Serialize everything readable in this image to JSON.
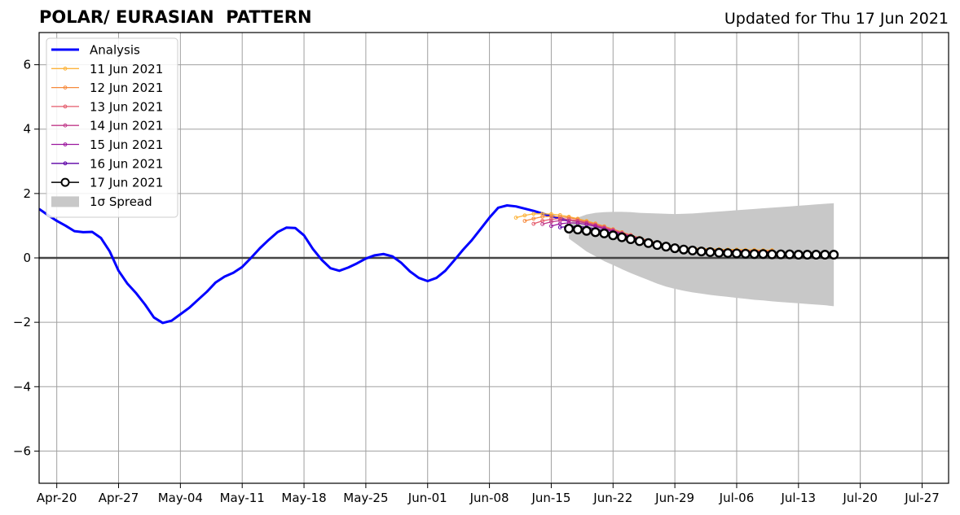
{
  "title_left": "POLAR/ EURASIAN  PATTERN",
  "title_right": "Updated for Thu 17 Jun 2021",
  "chart_data": {
    "type": "line",
    "title": "POLAR/ EURASIAN  PATTERN",
    "subtitle": "Updated for Thu 17 Jun 2021",
    "xlabel": "",
    "ylabel": "",
    "xlim": [
      "2021-04-18",
      "2021-07-30"
    ],
    "ylim": [
      -7,
      7
    ],
    "grid": true,
    "legend_position": "top-left",
    "x_ticks": [
      "Apr-20",
      "Apr-27",
      "May-04",
      "May-11",
      "May-18",
      "May-25",
      "Jun-01",
      "Jun-08",
      "Jun-15",
      "Jun-22",
      "Jun-29",
      "Jul-06",
      "Jul-13",
      "Jul-20",
      "Jul-27"
    ],
    "x_tick_dates": [
      "2021-04-20",
      "2021-04-27",
      "2021-05-04",
      "2021-05-11",
      "2021-05-18",
      "2021-05-25",
      "2021-06-01",
      "2021-06-08",
      "2021-06-15",
      "2021-06-22",
      "2021-06-29",
      "2021-07-06",
      "2021-07-13",
      "2021-07-20",
      "2021-07-27"
    ],
    "y_ticks": [
      -6,
      -4,
      -2,
      0,
      2,
      4,
      6
    ],
    "y_tick_labels": [
      "−6",
      "−4",
      "−2",
      "0",
      "2",
      "4",
      "6"
    ],
    "zero_line": 0,
    "analysis": {
      "name": "Analysis",
      "color": "#0000ff",
      "start": "2021-04-18",
      "values": [
        1.52,
        1.33,
        1.15,
        1.0,
        0.83,
        0.8,
        0.81,
        0.62,
        0.2,
        -0.4,
        -0.8,
        -1.1,
        -1.45,
        -1.85,
        -2.02,
        -1.95,
        -1.75,
        -1.55,
        -1.3,
        -1.05,
        -0.76,
        -0.58,
        -0.46,
        -0.28,
        0.0,
        0.3,
        0.56,
        0.8,
        0.94,
        0.93,
        0.7,
        0.28,
        -0.06,
        -0.32,
        -0.4,
        -0.3,
        -0.17,
        -0.02,
        0.08,
        0.12,
        0.05,
        -0.15,
        -0.42,
        -0.62,
        -0.72,
        -0.62,
        -0.4,
        -0.08,
        0.25,
        0.55,
        0.9,
        1.25,
        1.56,
        1.63,
        1.6,
        1.53,
        1.46,
        1.38,
        1.3,
        1.23,
        1.15
      ]
    },
    "forecasts": [
      {
        "name": "11 Jun 2021",
        "color": "#fcb33a",
        "start": "2021-06-11",
        "values": [
          1.25,
          1.32,
          1.37,
          1.37,
          1.36,
          1.33,
          1.28,
          1.22,
          1.15,
          1.07,
          0.98,
          0.89,
          0.8,
          0.71,
          0.62,
          0.54,
          0.46,
          0.4,
          0.35,
          0.32,
          0.3,
          0.29,
          0.28,
          0.27,
          0.26,
          0.26,
          0.25,
          0.25,
          0.24,
          0.24
        ]
      },
      {
        "name": "12 Jun 2021",
        "color": "#f68a3d",
        "start": "2021-06-12",
        "values": [
          1.15,
          1.22,
          1.28,
          1.29,
          1.28,
          1.25,
          1.2,
          1.13,
          1.06,
          0.98,
          0.89,
          0.8,
          0.71,
          0.62,
          0.54,
          0.46,
          0.4,
          0.35,
          0.31,
          0.29,
          0.27,
          0.26,
          0.25,
          0.24,
          0.24,
          0.23,
          0.23,
          0.22,
          0.22
        ]
      },
      {
        "name": "13 Jun 2021",
        "color": "#e45a6b",
        "start": "2021-06-13",
        "values": [
          1.06,
          1.15,
          1.2,
          1.22,
          1.2,
          1.16,
          1.1,
          1.03,
          0.95,
          0.87,
          0.78,
          0.7,
          0.61,
          0.52,
          0.45,
          0.39,
          0.34,
          0.3,
          0.28,
          0.26,
          0.25,
          0.24,
          0.23,
          0.22,
          0.22,
          0.21,
          0.21,
          0.2
        ]
      },
      {
        "name": "14 Jun 2021",
        "color": "#c13a8a",
        "start": "2021-06-14",
        "values": [
          1.05,
          1.12,
          1.16,
          1.16,
          1.13,
          1.08,
          1.01,
          0.93,
          0.85,
          0.76,
          0.68,
          0.6,
          0.52,
          0.45,
          0.39,
          0.34,
          0.3,
          0.27,
          0.25,
          0.23,
          0.22,
          0.21,
          0.21,
          0.2,
          0.2,
          0.19,
          0.19
        ]
      },
      {
        "name": "15 Jun 2021",
        "color": "#9c179e",
        "start": "2021-06-15",
        "values": [
          0.99,
          1.06,
          1.09,
          1.08,
          1.04,
          0.98,
          0.9,
          0.82,
          0.74,
          0.66,
          0.58,
          0.5,
          0.43,
          0.37,
          0.32,
          0.28,
          0.25,
          0.23,
          0.21,
          0.2,
          0.19,
          0.19,
          0.18,
          0.18,
          0.17,
          0.17
        ]
      },
      {
        "name": "16 Jun 2021",
        "color": "#5c01a6",
        "start": "2021-06-16",
        "values": [
          0.95,
          0.98,
          0.98,
          0.95,
          0.9,
          0.84,
          0.77,
          0.7,
          0.62,
          0.55,
          0.48,
          0.42,
          0.36,
          0.31,
          0.27,
          0.24,
          0.22,
          0.2,
          0.19,
          0.18,
          0.17,
          0.17,
          0.16,
          0.16,
          0.16
        ]
      },
      {
        "name": "17 Jun 2021",
        "color": "#000000",
        "start": "2021-06-17",
        "markers": "open-circle",
        "values": [
          0.91,
          0.88,
          0.84,
          0.8,
          0.76,
          0.7,
          0.64,
          0.58,
          0.52,
          0.46,
          0.4,
          0.35,
          0.3,
          0.26,
          0.23,
          0.2,
          0.18,
          0.16,
          0.15,
          0.14,
          0.13,
          0.12,
          0.12,
          0.11,
          0.11,
          0.11,
          0.1,
          0.1,
          0.1,
          0.1,
          0.1
        ]
      }
    ],
    "spread": {
      "name": "1σ Spread",
      "color": "#c8c8c8",
      "start": "2021-06-17",
      "upper": [
        1.05,
        1.25,
        1.35,
        1.4,
        1.42,
        1.43,
        1.43,
        1.42,
        1.4,
        1.39,
        1.38,
        1.37,
        1.36,
        1.37,
        1.38,
        1.4,
        1.42,
        1.44,
        1.46,
        1.48,
        1.5,
        1.52,
        1.54,
        1.56,
        1.58,
        1.6,
        1.62,
        1.64,
        1.66,
        1.68,
        1.7
      ],
      "lower": [
        0.6,
        0.4,
        0.2,
        0.05,
        -0.1,
        -0.22,
        -0.35,
        -0.47,
        -0.58,
        -0.69,
        -0.8,
        -0.89,
        -0.96,
        -1.02,
        -1.07,
        -1.11,
        -1.15,
        -1.18,
        -1.21,
        -1.24,
        -1.27,
        -1.3,
        -1.32,
        -1.35,
        -1.37,
        -1.39,
        -1.41,
        -1.43,
        -1.45,
        -1.47,
        -1.5
      ]
    }
  }
}
